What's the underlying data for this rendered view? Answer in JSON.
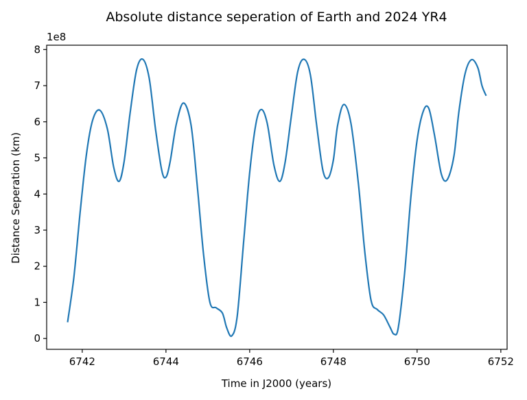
{
  "chart_data": {
    "type": "line",
    "title": "Absolute distance seperation of Earth and 2024 YR4",
    "xlabel": "Time in J2000 (years)",
    "ylabel": "Distance Seperation (km)",
    "y_offset_text": "1e8",
    "xlim": [
      6741.15,
      6752.15
    ],
    "ylim": [
      -0.3,
      8.12
    ],
    "x_ticks": [
      6742,
      6744,
      6746,
      6748,
      6750,
      6752
    ],
    "x_tick_labels": [
      "6742",
      "6744",
      "6746",
      "6748",
      "6750",
      "6752"
    ],
    "y_ticks": [
      0,
      1,
      2,
      3,
      4,
      5,
      6,
      7,
      8
    ],
    "y_tick_labels": [
      "0",
      "1",
      "2",
      "3",
      "4",
      "5",
      "6",
      "7",
      "8"
    ],
    "grid": false,
    "line_color": "#1f77b4",
    "series": [
      {
        "x": [
          6741.65,
          6741.8,
          6741.95,
          6742.1,
          6742.25,
          6742.42,
          6742.6,
          6742.75,
          6742.88,
          6743.0,
          6743.15,
          6743.3,
          6743.45,
          6743.6,
          6743.75,
          6743.9,
          6744.0,
          6744.1,
          6744.25,
          6744.42,
          6744.6,
          6744.75,
          6744.9,
          6745.05,
          6745.2,
          6745.35,
          6745.45,
          6745.57,
          6745.7,
          6745.85,
          6746.0,
          6746.15,
          6746.28,
          6746.42,
          6746.58,
          6746.72,
          6746.85,
          6747.0,
          6747.15,
          6747.3,
          6747.45,
          6747.6,
          6747.75,
          6747.88,
          6748.0,
          6748.1,
          6748.25,
          6748.42,
          6748.6,
          6748.75,
          6748.9,
          6749.05,
          6749.2,
          6749.35,
          6749.45,
          6749.55,
          6749.7,
          6749.85,
          6750.0,
          6750.15,
          6750.28,
          6750.42,
          6750.58,
          6750.72,
          6750.88,
          6751.0,
          6751.15,
          6751.3,
          6751.45,
          6751.55,
          6751.65
        ],
        "y": [
          0.45,
          1.7,
          3.5,
          5.1,
          6.05,
          6.32,
          5.8,
          4.75,
          4.35,
          4.9,
          6.3,
          7.45,
          7.73,
          7.2,
          5.8,
          4.65,
          4.47,
          4.9,
          5.95,
          6.52,
          5.9,
          4.2,
          2.3,
          1.0,
          0.85,
          0.7,
          0.3,
          0.07,
          0.6,
          2.6,
          4.6,
          5.95,
          6.34,
          5.95,
          4.8,
          4.35,
          4.9,
          6.2,
          7.4,
          7.73,
          7.3,
          5.9,
          4.65,
          4.45,
          4.95,
          5.9,
          6.48,
          5.95,
          4.25,
          2.4,
          1.05,
          0.8,
          0.65,
          0.32,
          0.12,
          0.3,
          1.8,
          3.9,
          5.5,
          6.3,
          6.37,
          5.6,
          4.55,
          4.4,
          5.05,
          6.3,
          7.35,
          7.72,
          7.5,
          7.0,
          6.72
        ]
      }
    ]
  }
}
